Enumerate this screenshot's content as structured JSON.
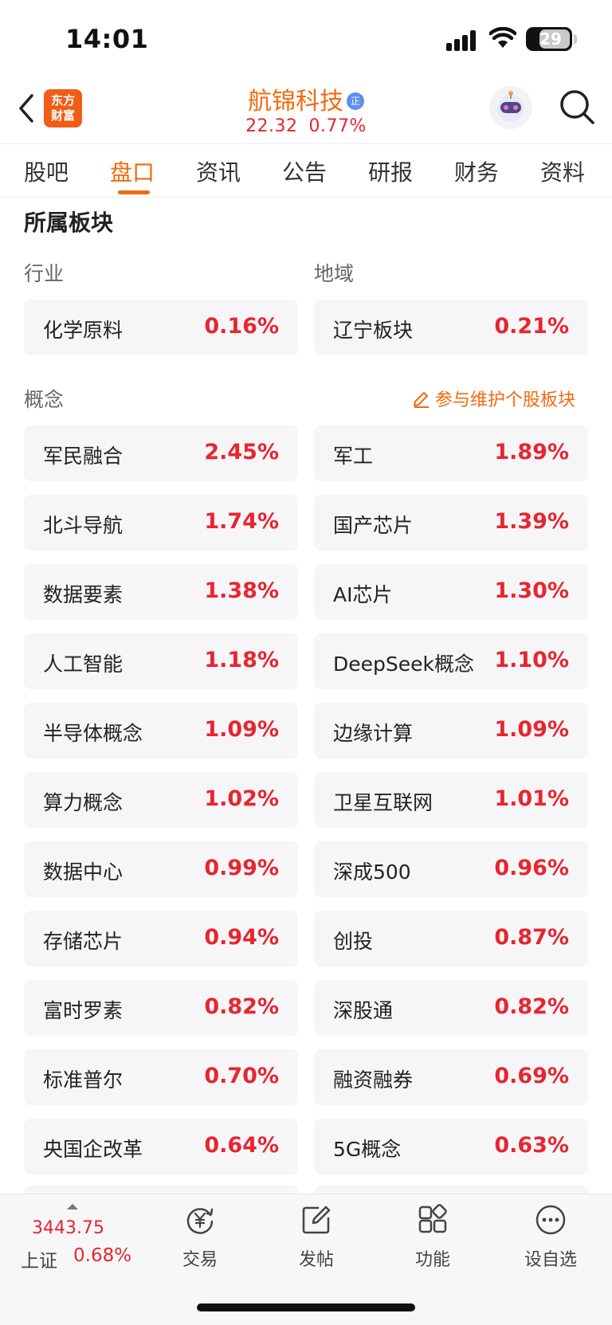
{
  "status_bar": {
    "time": "14:01",
    "battery": "29"
  },
  "header": {
    "logo_line1": "东方",
    "logo_line2": "财富",
    "stock_name": "航锦科技",
    "badge": "正",
    "price": "22.32",
    "change_pct": "0.77%"
  },
  "tabs": [
    "股吧",
    "盘口",
    "资讯",
    "公告",
    "研报",
    "财务",
    "资料"
  ],
  "active_tab": "盘口",
  "section_title": "所属板块",
  "industry": {
    "label": "行业",
    "name": "化学原料",
    "pct": "0.16%"
  },
  "region": {
    "label": "地域",
    "name": "辽宁板块",
    "pct": "0.21%"
  },
  "concept": {
    "label": "概念",
    "maintain_link": "参与维护个股板块",
    "items": [
      {
        "name": "军民融合",
        "pct": "2.45%"
      },
      {
        "name": "军工",
        "pct": "1.89%"
      },
      {
        "name": "北斗导航",
        "pct": "1.74%"
      },
      {
        "name": "国产芯片",
        "pct": "1.39%"
      },
      {
        "name": "数据要素",
        "pct": "1.38%"
      },
      {
        "name": "AI芯片",
        "pct": "1.30%"
      },
      {
        "name": "人工智能",
        "pct": "1.18%"
      },
      {
        "name": "DeepSeek概念",
        "pct": "1.10%"
      },
      {
        "name": "半导体概念",
        "pct": "1.09%"
      },
      {
        "name": "边缘计算",
        "pct": "1.09%"
      },
      {
        "name": "算力概念",
        "pct": "1.02%"
      },
      {
        "name": "卫星互联网",
        "pct": "1.01%"
      },
      {
        "name": "数据中心",
        "pct": "0.99%"
      },
      {
        "name": "深成500",
        "pct": "0.96%"
      },
      {
        "name": "存储芯片",
        "pct": "0.94%"
      },
      {
        "name": "创投",
        "pct": "0.87%"
      },
      {
        "name": "富时罗素",
        "pct": "0.82%"
      },
      {
        "name": "深股通",
        "pct": "0.82%"
      },
      {
        "name": "标准普尔",
        "pct": "0.70%"
      },
      {
        "name": "融资融券",
        "pct": "0.69%"
      },
      {
        "name": "央国企改革",
        "pct": "0.64%"
      },
      {
        "name": "5G概念",
        "pct": "0.63%"
      }
    ]
  },
  "bottom_bar": {
    "index_value": "3443.75",
    "index_name": "上证",
    "index_pct": "0.68%",
    "items": [
      {
        "label": "交易",
        "icon": "yen-cycle-icon"
      },
      {
        "label": "发帖",
        "icon": "edit-icon"
      },
      {
        "label": "功能",
        "icon": "grid-icon"
      },
      {
        "label": "设自选",
        "icon": "more-dots-icon"
      }
    ]
  },
  "colors": {
    "accent": "#f26a0e",
    "up": "#e8252f",
    "card_bg": "#f6f6f8"
  }
}
